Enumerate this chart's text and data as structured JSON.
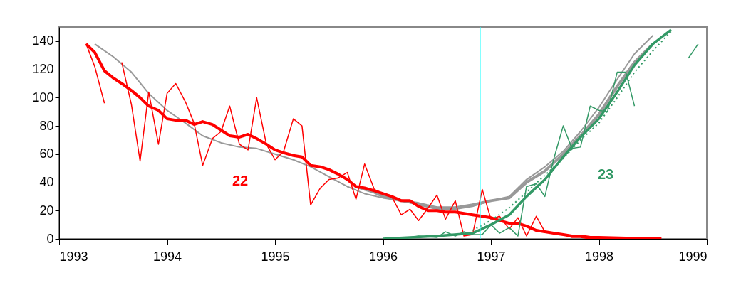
{
  "chart_data": {
    "type": "line",
    "xlim": [
      1993,
      1999
    ],
    "xticks": [
      1993,
      1994,
      1995,
      1996,
      1997,
      1998,
      1999
    ],
    "ylim": [
      0,
      150
    ],
    "yticks": [
      0,
      20,
      40,
      60,
      80,
      100,
      120,
      140
    ],
    "grid": false,
    "marker": "none",
    "annotations": [
      "22",
      "23"
    ],
    "ref_lines": [
      {
        "axis": "x",
        "value": 1996.9,
        "color": "#33ffff"
      }
    ],
    "series": [
      {
        "color": "#999999",
        "x": [
          1993.33,
          1993.5,
          1993.67,
          1993.83,
          1994.0,
          1994.17,
          1994.33,
          1994.5,
          1994.67,
          1994.83,
          1995.0,
          1995.17,
          1995.33,
          1995.5,
          1995.67,
          1995.83,
          1996.0,
          1996.17,
          1996.33,
          1996.5,
          1996.67,
          1996.83,
          1997.0,
          1997.17,
          1997.33,
          1997.5,
          1997.67,
          1997.83,
          1998.0,
          1998.17,
          1998.33,
          1998.5
        ],
        "values": [
          138,
          129,
          118,
          103,
          91,
          82,
          73,
          68,
          65,
          64,
          60,
          56,
          51,
          44,
          37,
          32,
          29,
          27,
          24,
          21,
          21,
          23,
          27,
          30,
          42,
          51,
          62,
          76,
          93,
          113,
          131,
          144
        ]
      },
      {
        "color": "#999999",
        "x": [
          1995.75,
          1995.92,
          1996.0,
          1996.17,
          1996.33,
          1996.5,
          1996.67,
          1996.83,
          1997.0,
          1997.17,
          1997.33,
          1997.5,
          1997.67,
          1997.83,
          1998.0,
          1998.17,
          1998.33,
          1998.5
        ],
        "values": [
          37,
          33,
          30,
          27,
          25,
          22,
          22,
          24,
          27,
          29,
          40,
          48,
          60,
          73,
          88,
          108,
          125,
          138
        ]
      },
      {
        "color": "#ff0000",
        "x": [
          1993.25,
          1993.33,
          1993.42,
          1993.5,
          1993.58,
          1993.67,
          1993.75,
          1993.83,
          1993.92,
          1994.0,
          1994.08,
          1994.17,
          1994.25,
          1994.33,
          1994.42,
          1994.5,
          1994.58,
          1994.67,
          1994.75,
          1994.83,
          1994.92,
          1995.0,
          1995.08,
          1995.17,
          1995.25,
          1995.33,
          1995.42,
          1995.5,
          1995.58,
          1995.67,
          1995.75,
          1995.83,
          1995.92,
          1996.0,
          1996.08,
          1996.17,
          1996.25,
          1996.33,
          1996.42,
          1996.5,
          1996.58,
          1996.67,
          1996.75,
          1996.83,
          1996.92,
          1997.0,
          1997.08,
          1997.17,
          1997.25,
          1997.33,
          1997.42,
          1997.5,
          1997.58,
          1997.67,
          1997.75,
          1997.83,
          1997.92,
          1998.0,
          1998.25,
          1998.5
        ],
        "values": [
          138,
          122,
          96,
          null,
          125,
          95,
          55,
          104,
          67,
          103,
          110,
          97,
          82,
          52,
          71,
          76,
          94,
          67,
          63,
          100,
          67,
          56,
          62,
          85,
          80,
          24,
          36,
          42,
          43,
          47,
          28,
          53,
          35,
          32,
          30,
          17,
          21,
          13,
          22,
          31,
          14,
          27,
          2,
          3,
          35,
          14,
          16,
          7,
          15,
          2,
          16,
          5,
          4,
          3,
          1,
          1,
          0,
          0,
          0,
          0
        ]
      },
      {
        "color": "#ff0000",
        "x": [
          1993.25,
          1993.33,
          1993.42,
          1993.5,
          1993.58,
          1993.67,
          1993.75,
          1993.83,
          1993.92,
          1994.0,
          1994.08,
          1994.17,
          1994.25,
          1994.33,
          1994.42,
          1994.5,
          1994.58,
          1994.67,
          1994.75,
          1994.83,
          1994.92,
          1995.0,
          1995.08,
          1995.17,
          1995.25,
          1995.33,
          1995.42,
          1995.5,
          1995.58,
          1995.67,
          1995.75,
          1995.83,
          1995.92,
          1996.0,
          1996.08,
          1996.17,
          1996.25,
          1996.33,
          1996.42,
          1996.5,
          1996.58,
          1996.67,
          1996.75,
          1996.83,
          1996.92,
          1997.0,
          1997.08,
          1997.17,
          1997.25,
          1997.33,
          1997.42,
          1997.5,
          1997.58,
          1997.67,
          1997.75,
          1997.83,
          1997.92,
          1998.0,
          1998.25,
          1998.58
        ],
        "values": [
          138,
          132,
          119,
          114,
          110,
          105,
          100,
          94,
          91,
          85,
          84,
          84,
          81,
          83,
          81,
          77,
          73,
          72,
          74,
          71,
          67,
          63,
          61,
          59,
          58,
          52,
          51,
          49,
          46,
          42,
          37,
          36,
          34,
          32,
          30,
          27,
          27,
          23,
          20,
          20,
          19,
          19,
          18,
          17,
          16,
          15,
          13,
          11,
          11,
          9,
          6,
          5,
          4,
          3,
          2,
          2,
          1,
          1,
          0.5,
          0
        ]
      },
      {
        "color": "#339966",
        "x": [
          1996.0,
          1996.17,
          1996.33,
          1996.5,
          1996.58,
          1996.67,
          1996.75,
          1996.83,
          1996.92,
          1997.0,
          1997.08,
          1997.17,
          1997.25,
          1997.33,
          1997.42,
          1997.5,
          1997.58,
          1997.67,
          1997.75,
          1997.83,
          1997.92,
          1998.0,
          1998.08,
          1998.17,
          1998.25,
          1998.33,
          1998.42,
          1998.83,
          1998.92
        ],
        "values": [
          0,
          0,
          2,
          1,
          5,
          2,
          5,
          3,
          3,
          10,
          4,
          8,
          2,
          37,
          39,
          30,
          56,
          80,
          64,
          65,
          94,
          91,
          90,
          118,
          118,
          94,
          null,
          128,
          138
        ]
      },
      {
        "color": "#339966",
        "line_style": "dotted",
        "x": [
          1996.83,
          1997.0,
          1997.17,
          1997.33,
          1997.5,
          1997.67,
          1997.83,
          1998.0,
          1998.17,
          1998.33,
          1998.5,
          1998.67
        ],
        "values": [
          6,
          13,
          22,
          33,
          45,
          57,
          70,
          82,
          100,
          118,
          133,
          147
        ]
      },
      {
        "color": "#339966",
        "x": [
          1996.0,
          1996.5,
          1996.83,
          1997.0,
          1997.17,
          1997.33,
          1997.5,
          1997.67,
          1997.83,
          1998.0,
          1998.17,
          1998.33,
          1998.5,
          1998.67
        ],
        "values": [
          0,
          2,
          4,
          10,
          17,
          30,
          42,
          58,
          72,
          85,
          104,
          123,
          138,
          148
        ]
      }
    ]
  }
}
